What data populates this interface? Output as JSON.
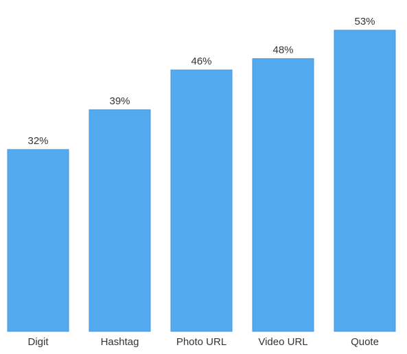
{
  "chart_data": {
    "type": "bar",
    "categories": [
      "Digit",
      "Hashtag",
      "Photo URL",
      "Video URL",
      "Quote"
    ],
    "values": [
      32,
      39,
      46,
      48,
      53
    ],
    "value_labels": [
      "32%",
      "39%",
      "46%",
      "48%",
      "53%"
    ],
    "color": "#53aaee"
  }
}
